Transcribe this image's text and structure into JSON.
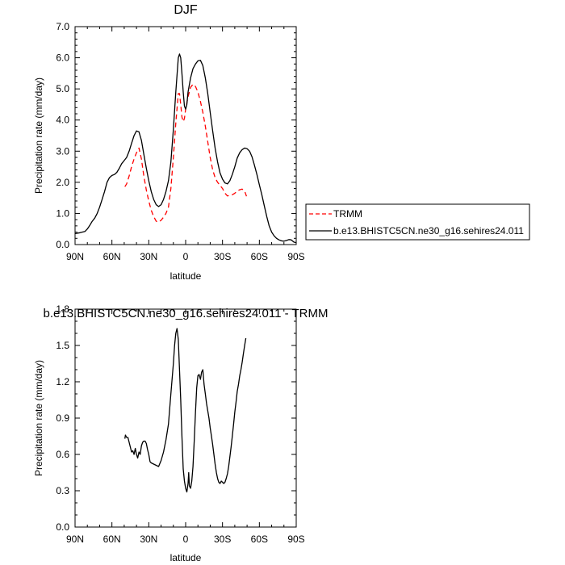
{
  "chart_data": [
    {
      "type": "line",
      "title": "DJF",
      "xlabel": "latitude",
      "ylabel": "Precipitation rate (mm/day)",
      "xlim": [
        -90,
        90
      ],
      "ylim": [
        0.0,
        7.0
      ],
      "x_ticks": [
        {
          "value": -90,
          "label": "90N"
        },
        {
          "value": -60,
          "label": "60N"
        },
        {
          "value": -30,
          "label": "30N"
        },
        {
          "value": 0,
          "label": "0"
        },
        {
          "value": 30,
          "label": "30S"
        },
        {
          "value": 60,
          "label": "60S"
        },
        {
          "value": 90,
          "label": "90S"
        }
      ],
      "y_ticks": [
        "0.0",
        "1.0",
        "2.0",
        "3.0",
        "4.0",
        "5.0",
        "6.0",
        "7.0"
      ],
      "legend_position": "outside-right",
      "series": [
        {
          "name": "TRMM",
          "color": "#ff0000",
          "dash": "dashed",
          "points": [
            [
              -49.5,
              1.86
            ],
            [
              -48,
              1.95
            ],
            [
              -46,
              2.2
            ],
            [
              -44,
              2.5
            ],
            [
              -42,
              2.75
            ],
            [
              -40,
              2.95
            ],
            [
              -38,
              3.1
            ],
            [
              -36,
              2.75
            ],
            [
              -34,
              2.2
            ],
            [
              -32,
              1.75
            ],
            [
              -30,
              1.4
            ],
            [
              -28,
              1.1
            ],
            [
              -26,
              0.9
            ],
            [
              -24,
              0.75
            ],
            [
              -22,
              0.72
            ],
            [
              -20,
              0.78
            ],
            [
              -18,
              0.88
            ],
            [
              -16,
              1.0
            ],
            [
              -14,
              1.2
            ],
            [
              -12,
              1.8
            ],
            [
              -10,
              2.8
            ],
            [
              -8,
              3.9
            ],
            [
              -6,
              4.85
            ],
            [
              -5,
              4.85
            ],
            [
              -4,
              4.5
            ],
            [
              -3,
              4.1
            ],
            [
              -2,
              3.95
            ],
            [
              -1,
              4.05
            ],
            [
              0,
              4.35
            ],
            [
              2,
              4.75
            ],
            [
              4,
              5.05
            ],
            [
              6,
              5.15
            ],
            [
              8,
              5.08
            ],
            [
              10,
              4.9
            ],
            [
              12,
              4.6
            ],
            [
              14,
              4.25
            ],
            [
              16,
              3.8
            ],
            [
              18,
              3.3
            ],
            [
              20,
              2.8
            ],
            [
              22,
              2.4
            ],
            [
              24,
              2.15
            ],
            [
              26,
              2.0
            ],
            [
              28,
              1.9
            ],
            [
              30,
              1.8
            ],
            [
              32,
              1.65
            ],
            [
              34,
              1.56
            ],
            [
              36,
              1.58
            ],
            [
              38,
              1.6
            ],
            [
              40,
              1.65
            ],
            [
              42,
              1.72
            ],
            [
              44,
              1.76
            ],
            [
              46,
              1.78
            ],
            [
              48,
              1.72
            ],
            [
              49.5,
              1.55
            ]
          ]
        },
        {
          "name": "b.e13.BHISTC5CN.ne30_g16.sehires24.011",
          "color": "#000000",
          "dash": "solid",
          "points": [
            [
              -90,
              0.35
            ],
            [
              -86,
              0.38
            ],
            [
              -82,
              0.42
            ],
            [
              -80,
              0.5
            ],
            [
              -78,
              0.62
            ],
            [
              -76,
              0.75
            ],
            [
              -74,
              0.85
            ],
            [
              -72,
              1.0
            ],
            [
              -70,
              1.2
            ],
            [
              -68,
              1.45
            ],
            [
              -66,
              1.7
            ],
            [
              -64,
              2.0
            ],
            [
              -62,
              2.15
            ],
            [
              -60,
              2.22
            ],
            [
              -58,
              2.25
            ],
            [
              -56,
              2.32
            ],
            [
              -54,
              2.45
            ],
            [
              -52,
              2.6
            ],
            [
              -50,
              2.7
            ],
            [
              -48,
              2.8
            ],
            [
              -46,
              3.0
            ],
            [
              -44,
              3.25
            ],
            [
              -42,
              3.5
            ],
            [
              -40,
              3.65
            ],
            [
              -38,
              3.62
            ],
            [
              -36,
              3.35
            ],
            [
              -34,
              2.9
            ],
            [
              -32,
              2.45
            ],
            [
              -30,
              2.05
            ],
            [
              -28,
              1.7
            ],
            [
              -26,
              1.45
            ],
            [
              -24,
              1.28
            ],
            [
              -22,
              1.22
            ],
            [
              -20,
              1.28
            ],
            [
              -18,
              1.45
            ],
            [
              -16,
              1.7
            ],
            [
              -14,
              2.05
            ],
            [
              -12,
              2.65
            ],
            [
              -10,
              3.7
            ],
            [
              -8,
              4.9
            ],
            [
              -6,
              6.0
            ],
            [
              -5,
              6.12
            ],
            [
              -4,
              6.0
            ],
            [
              -3,
              5.5
            ],
            [
              -2,
              4.9
            ],
            [
              -1,
              4.45
            ],
            [
              0,
              4.35
            ],
            [
              1,
              4.5
            ],
            [
              2,
              4.9
            ],
            [
              4,
              5.35
            ],
            [
              6,
              5.65
            ],
            [
              8,
              5.8
            ],
            [
              10,
              5.9
            ],
            [
              12,
              5.92
            ],
            [
              14,
              5.75
            ],
            [
              16,
              5.35
            ],
            [
              18,
              4.85
            ],
            [
              20,
              4.25
            ],
            [
              22,
              3.65
            ],
            [
              24,
              3.1
            ],
            [
              26,
              2.65
            ],
            [
              28,
              2.3
            ],
            [
              30,
              2.1
            ],
            [
              32,
              1.98
            ],
            [
              34,
              1.95
            ],
            [
              36,
              2.05
            ],
            [
              38,
              2.25
            ],
            [
              40,
              2.5
            ],
            [
              42,
              2.78
            ],
            [
              44,
              2.95
            ],
            [
              46,
              3.05
            ],
            [
              48,
              3.1
            ],
            [
              50,
              3.08
            ],
            [
              52,
              3.0
            ],
            [
              54,
              2.82
            ],
            [
              56,
              2.55
            ],
            [
              58,
              2.25
            ],
            [
              60,
              1.92
            ],
            [
              62,
              1.6
            ],
            [
              64,
              1.25
            ],
            [
              66,
              0.9
            ],
            [
              68,
              0.6
            ],
            [
              70,
              0.4
            ],
            [
              72,
              0.28
            ],
            [
              74,
              0.2
            ],
            [
              76,
              0.15
            ],
            [
              78,
              0.12
            ],
            [
              80,
              0.11
            ],
            [
              82,
              0.13
            ],
            [
              84,
              0.16
            ],
            [
              86,
              0.15
            ],
            [
              88,
              0.08
            ],
            [
              90,
              0.06
            ]
          ]
        }
      ]
    },
    {
      "type": "line",
      "title": "b.e13.BHISTC5CN.ne30_g16.sehires24.011 - TRMM",
      "xlabel": "latitude",
      "ylabel": "Precipitation rate (mm/day)",
      "xlim": [
        -90,
        90
      ],
      "ylim": [
        0.0,
        1.8
      ],
      "x_ticks": [
        {
          "value": -90,
          "label": "90N"
        },
        {
          "value": -60,
          "label": "60N"
        },
        {
          "value": -30,
          "label": "30N"
        },
        {
          "value": 0,
          "label": "0"
        },
        {
          "value": 30,
          "label": "30S"
        },
        {
          "value": 60,
          "label": "60S"
        },
        {
          "value": 90,
          "label": "90S"
        }
      ],
      "y_ticks": [
        "0.0",
        "0.3",
        "0.6",
        "0.9",
        "1.2",
        "1.5",
        "1.8"
      ],
      "series": [
        {
          "color": "#000000",
          "dash": "solid",
          "points": [
            [
              -49.5,
              0.73
            ],
            [
              -49,
              0.76
            ],
            [
              -48,
              0.74
            ],
            [
              -47,
              0.74
            ],
            [
              -46,
              0.7
            ],
            [
              -45,
              0.66
            ],
            [
              -44,
              0.62
            ],
            [
              -43,
              0.63
            ],
            [
              -42,
              0.6
            ],
            [
              -41,
              0.65
            ],
            [
              -40,
              0.6
            ],
            [
              -39,
              0.57
            ],
            [
              -38,
              0.62
            ],
            [
              -37,
              0.6
            ],
            [
              -36,
              0.67
            ],
            [
              -35,
              0.7
            ],
            [
              -34,
              0.71
            ],
            [
              -33,
              0.71
            ],
            [
              -32,
              0.69
            ],
            [
              -31,
              0.64
            ],
            [
              -30,
              0.6
            ],
            [
              -29,
              0.54
            ],
            [
              -28,
              0.53
            ],
            [
              -26,
              0.52
            ],
            [
              -24,
              0.51
            ],
            [
              -22,
              0.5
            ],
            [
              -20,
              0.55
            ],
            [
              -18,
              0.62
            ],
            [
              -16,
              0.72
            ],
            [
              -14,
              0.85
            ],
            [
              -12,
              1.1
            ],
            [
              -10,
              1.35
            ],
            [
              -9,
              1.5
            ],
            [
              -8,
              1.6
            ],
            [
              -7,
              1.64
            ],
            [
              -6,
              1.55
            ],
            [
              -5,
              1.3
            ],
            [
              -4,
              1.05
            ],
            [
              -3,
              0.75
            ],
            [
              -2,
              0.48
            ],
            [
              -1,
              0.38
            ],
            [
              0,
              0.32
            ],
            [
              1,
              0.29
            ],
            [
              2,
              0.36
            ],
            [
              2.5,
              0.45
            ],
            [
              3,
              0.34
            ],
            [
              4,
              0.32
            ],
            [
              5,
              0.38
            ],
            [
              6,
              0.5
            ],
            [
              7,
              0.72
            ],
            [
              8,
              0.95
            ],
            [
              9,
              1.15
            ],
            [
              10,
              1.25
            ],
            [
              11,
              1.26
            ],
            [
              12,
              1.22
            ],
            [
              13,
              1.28
            ],
            [
              14,
              1.3
            ],
            [
              15,
              1.18
            ],
            [
              16,
              1.1
            ],
            [
              17,
              1.02
            ],
            [
              18,
              0.96
            ],
            [
              19,
              0.9
            ],
            [
              20,
              0.82
            ],
            [
              21,
              0.75
            ],
            [
              22,
              0.68
            ],
            [
              23,
              0.6
            ],
            [
              24,
              0.52
            ],
            [
              25,
              0.45
            ],
            [
              26,
              0.4
            ],
            [
              27,
              0.37
            ],
            [
              28,
              0.36
            ],
            [
              29,
              0.38
            ],
            [
              30,
              0.37
            ],
            [
              31,
              0.36
            ],
            [
              32,
              0.37
            ],
            [
              33,
              0.4
            ],
            [
              34,
              0.44
            ],
            [
              35,
              0.5
            ],
            [
              36,
              0.58
            ],
            [
              37,
              0.66
            ],
            [
              38,
              0.75
            ],
            [
              39,
              0.85
            ],
            [
              40,
              0.95
            ],
            [
              41,
              1.03
            ],
            [
              42,
              1.12
            ],
            [
              43,
              1.18
            ],
            [
              44,
              1.25
            ],
            [
              45,
              1.3
            ],
            [
              46,
              1.36
            ],
            [
              47,
              1.43
            ],
            [
              48,
              1.5
            ],
            [
              49,
              1.56
            ]
          ]
        }
      ]
    }
  ]
}
